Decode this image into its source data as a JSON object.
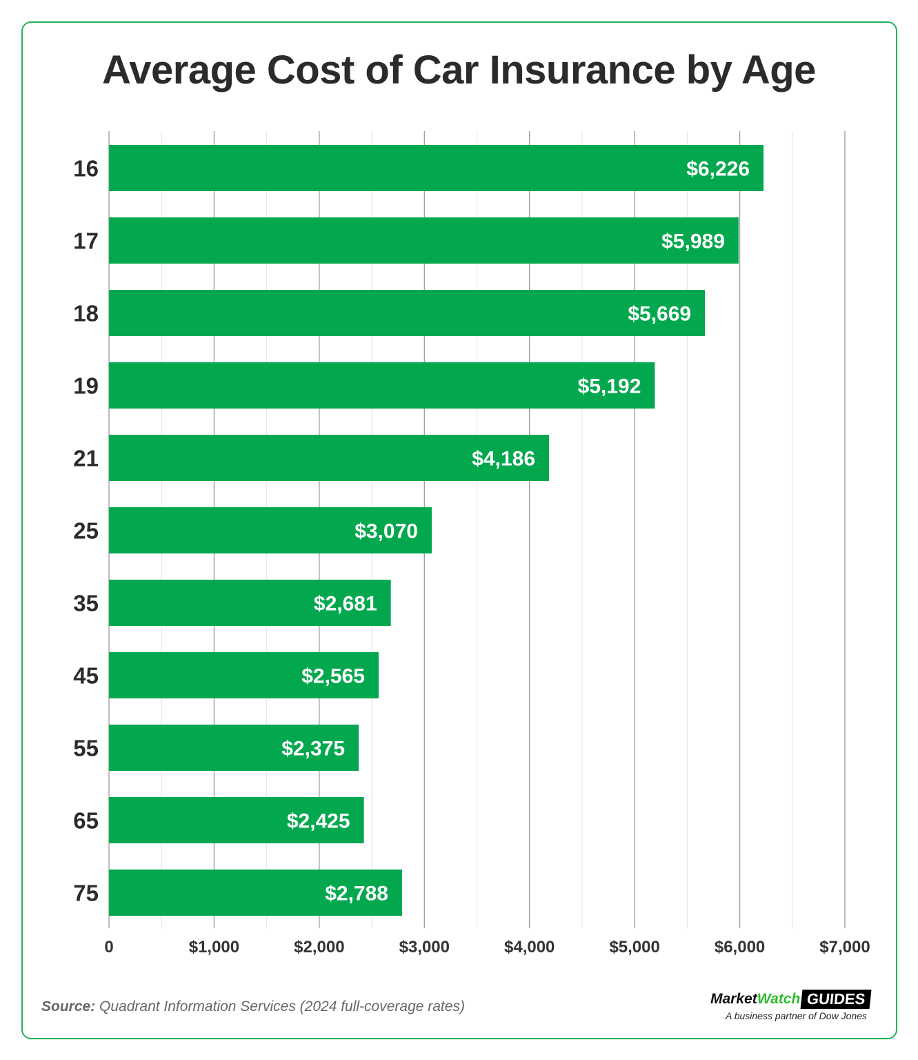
{
  "chart_data": {
    "type": "bar",
    "orientation": "horizontal",
    "title": "Average Cost of Car Insurance by Age",
    "categories": [
      "16",
      "17",
      "18",
      "19",
      "21",
      "25",
      "35",
      "45",
      "55",
      "65",
      "75"
    ],
    "values": [
      6226,
      5989,
      5669,
      5192,
      4186,
      3070,
      2681,
      2565,
      2375,
      2425,
      2788
    ],
    "data_labels": [
      "$6,226",
      "$5,989",
      "$5,669",
      "$5,192",
      "$4,186",
      "$3,070",
      "$2,681",
      "$2,565",
      "$2,375",
      "$2,425",
      "$2,788"
    ],
    "xlim": [
      0,
      7000
    ],
    "x_ticks": [
      0,
      1000,
      2000,
      3000,
      4000,
      5000,
      6000,
      7000
    ],
    "x_tick_labels": [
      "0",
      "$1,000",
      "$2,000",
      "$3,000",
      "$4,000",
      "$5,000",
      "$6,000",
      "$7,000"
    ],
    "grid": true,
    "bar_color": "#03a84e",
    "xlabel": "",
    "ylabel": ""
  },
  "footer": {
    "source_label": "Source:",
    "source_text": " Quadrant Information Services (2024 full-coverage rates)"
  },
  "logo": {
    "part1": "Market",
    "part2": "Watch",
    "part3": "GUIDES",
    "tagline": "A business partner of Dow Jones"
  }
}
